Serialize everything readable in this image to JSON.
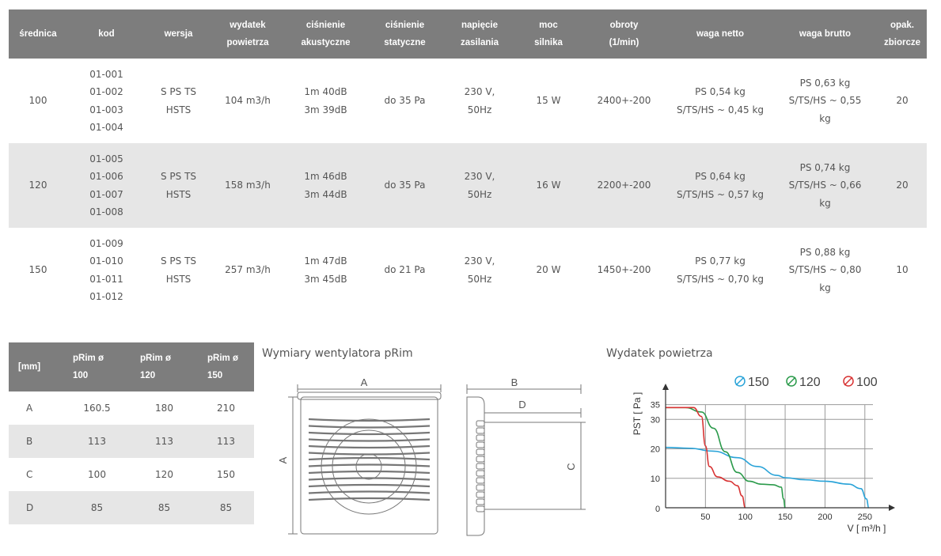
{
  "spec_table": {
    "headers": [
      [
        "średnica"
      ],
      [
        "kod"
      ],
      [
        "wersja"
      ],
      [
        "wydatek",
        "powietrza"
      ],
      [
        "ciśnienie",
        "akustyczne"
      ],
      [
        "ciśnienie",
        "statyczne"
      ],
      [
        "napięcie",
        "zasilania"
      ],
      [
        "moc",
        "silnika"
      ],
      [
        "obroty",
        "(1/min)"
      ],
      [
        "waga netto"
      ],
      [
        "waga brutto"
      ],
      [
        "opak.",
        "zbiorcze"
      ]
    ],
    "rows": [
      [
        [
          "100"
        ],
        [
          "01-001",
          "01-002",
          "01-003",
          "01-004"
        ],
        [
          "S PS TS",
          "HSTS"
        ],
        [
          "104 m3/h"
        ],
        [
          "1m 40dB",
          "3m 39dB"
        ],
        [
          "do 35 Pa"
        ],
        [
          "230 V,",
          "50Hz"
        ],
        [
          "15 W"
        ],
        [
          "2400+-200"
        ],
        [
          "PS 0,54 kg",
          "S/TS/HS ~ 0,45 kg"
        ],
        [
          "PS 0,63 kg",
          "S/TS/HS ~ 0,55",
          "kg"
        ],
        [
          "20"
        ]
      ],
      [
        [
          "120"
        ],
        [
          "01-005",
          "01-006",
          "01-007",
          "01-008"
        ],
        [
          "S PS TS",
          "HSTS"
        ],
        [
          "158 m3/h"
        ],
        [
          "1m 46dB",
          "3m 44dB"
        ],
        [
          "do 35 Pa"
        ],
        [
          "230 V,",
          "50Hz"
        ],
        [
          "16 W"
        ],
        [
          "2200+-200"
        ],
        [
          "PS 0,64 kg",
          "S/TS/HS ~ 0,57 kg"
        ],
        [
          "PS 0,74 kg",
          "S/TS/HS ~ 0,66",
          "kg"
        ],
        [
          "20"
        ]
      ],
      [
        [
          "150"
        ],
        [
          "01-009",
          "01-010",
          "01-011",
          "01-012"
        ],
        [
          "S PS TS",
          "HSTS"
        ],
        [
          "257 m3/h"
        ],
        [
          "1m 47dB",
          "3m 45dB"
        ],
        [
          "do 21 Pa"
        ],
        [
          "230 V,",
          "50Hz"
        ],
        [
          "20 W"
        ],
        [
          "1450+-200"
        ],
        [
          "PS 0,77 kg",
          "S/TS/HS ~ 0,70 kg"
        ],
        [
          "PS 0,88 kg",
          "S/TS/HS ~ 0,80",
          "kg"
        ],
        [
          "10"
        ]
      ]
    ]
  },
  "dims_table": {
    "headers": [
      [
        "[mm]"
      ],
      [
        "pRim ø",
        "100"
      ],
      [
        "pRim ø",
        "120"
      ],
      [
        "pRim ø",
        "150"
      ]
    ],
    "rows": [
      [
        "A",
        "160.5",
        "180",
        "210"
      ],
      [
        "B",
        "113",
        "113",
        "113"
      ],
      [
        "C",
        "100",
        "120",
        "150"
      ],
      [
        "D",
        "85",
        "85",
        "85"
      ]
    ]
  },
  "drawing": {
    "caption": "Wymiary wentylatora pRim",
    "labels": {
      "a": "A",
      "b": "B",
      "c": "C",
      "d": "D"
    }
  },
  "chart_data": {
    "type": "line",
    "title": "Wydatek powietrza",
    "xlabel": "V [ m³/h ]",
    "ylabel": "PST [ Pa ]",
    "x_ticks": [
      50,
      100,
      150,
      200,
      250
    ],
    "y_ticks": [
      10,
      20,
      30,
      35
    ],
    "origin_label": "0",
    "xlim": [
      0,
      280
    ],
    "ylim": [
      0,
      40
    ],
    "legend_position": "top",
    "series": [
      {
        "name": "150",
        "color": "#29a3d8",
        "x": [
          0,
          30,
          60,
          90,
          115,
          140,
          150,
          175,
          200,
          230,
          245,
          252,
          255
        ],
        "y": [
          20.5,
          20.2,
          19.2,
          17,
          14,
          11,
          10.2,
          9.5,
          9,
          8,
          6.5,
          3,
          0
        ]
      },
      {
        "name": "120",
        "color": "#2a9a4a",
        "x": [
          0,
          25,
          45,
          60,
          75,
          90,
          105,
          120,
          135,
          145,
          148,
          150
        ],
        "y": [
          34,
          34,
          32.5,
          27,
          19,
          12,
          9,
          8,
          7.8,
          7,
          3,
          0
        ]
      },
      {
        "name": "100",
        "color": "#d83333",
        "x": [
          0,
          35,
          45,
          50,
          55,
          65,
          80,
          90,
          96,
          100
        ],
        "y": [
          34,
          34,
          31,
          21,
          14,
          10.5,
          9,
          7.5,
          4,
          0
        ]
      }
    ]
  }
}
